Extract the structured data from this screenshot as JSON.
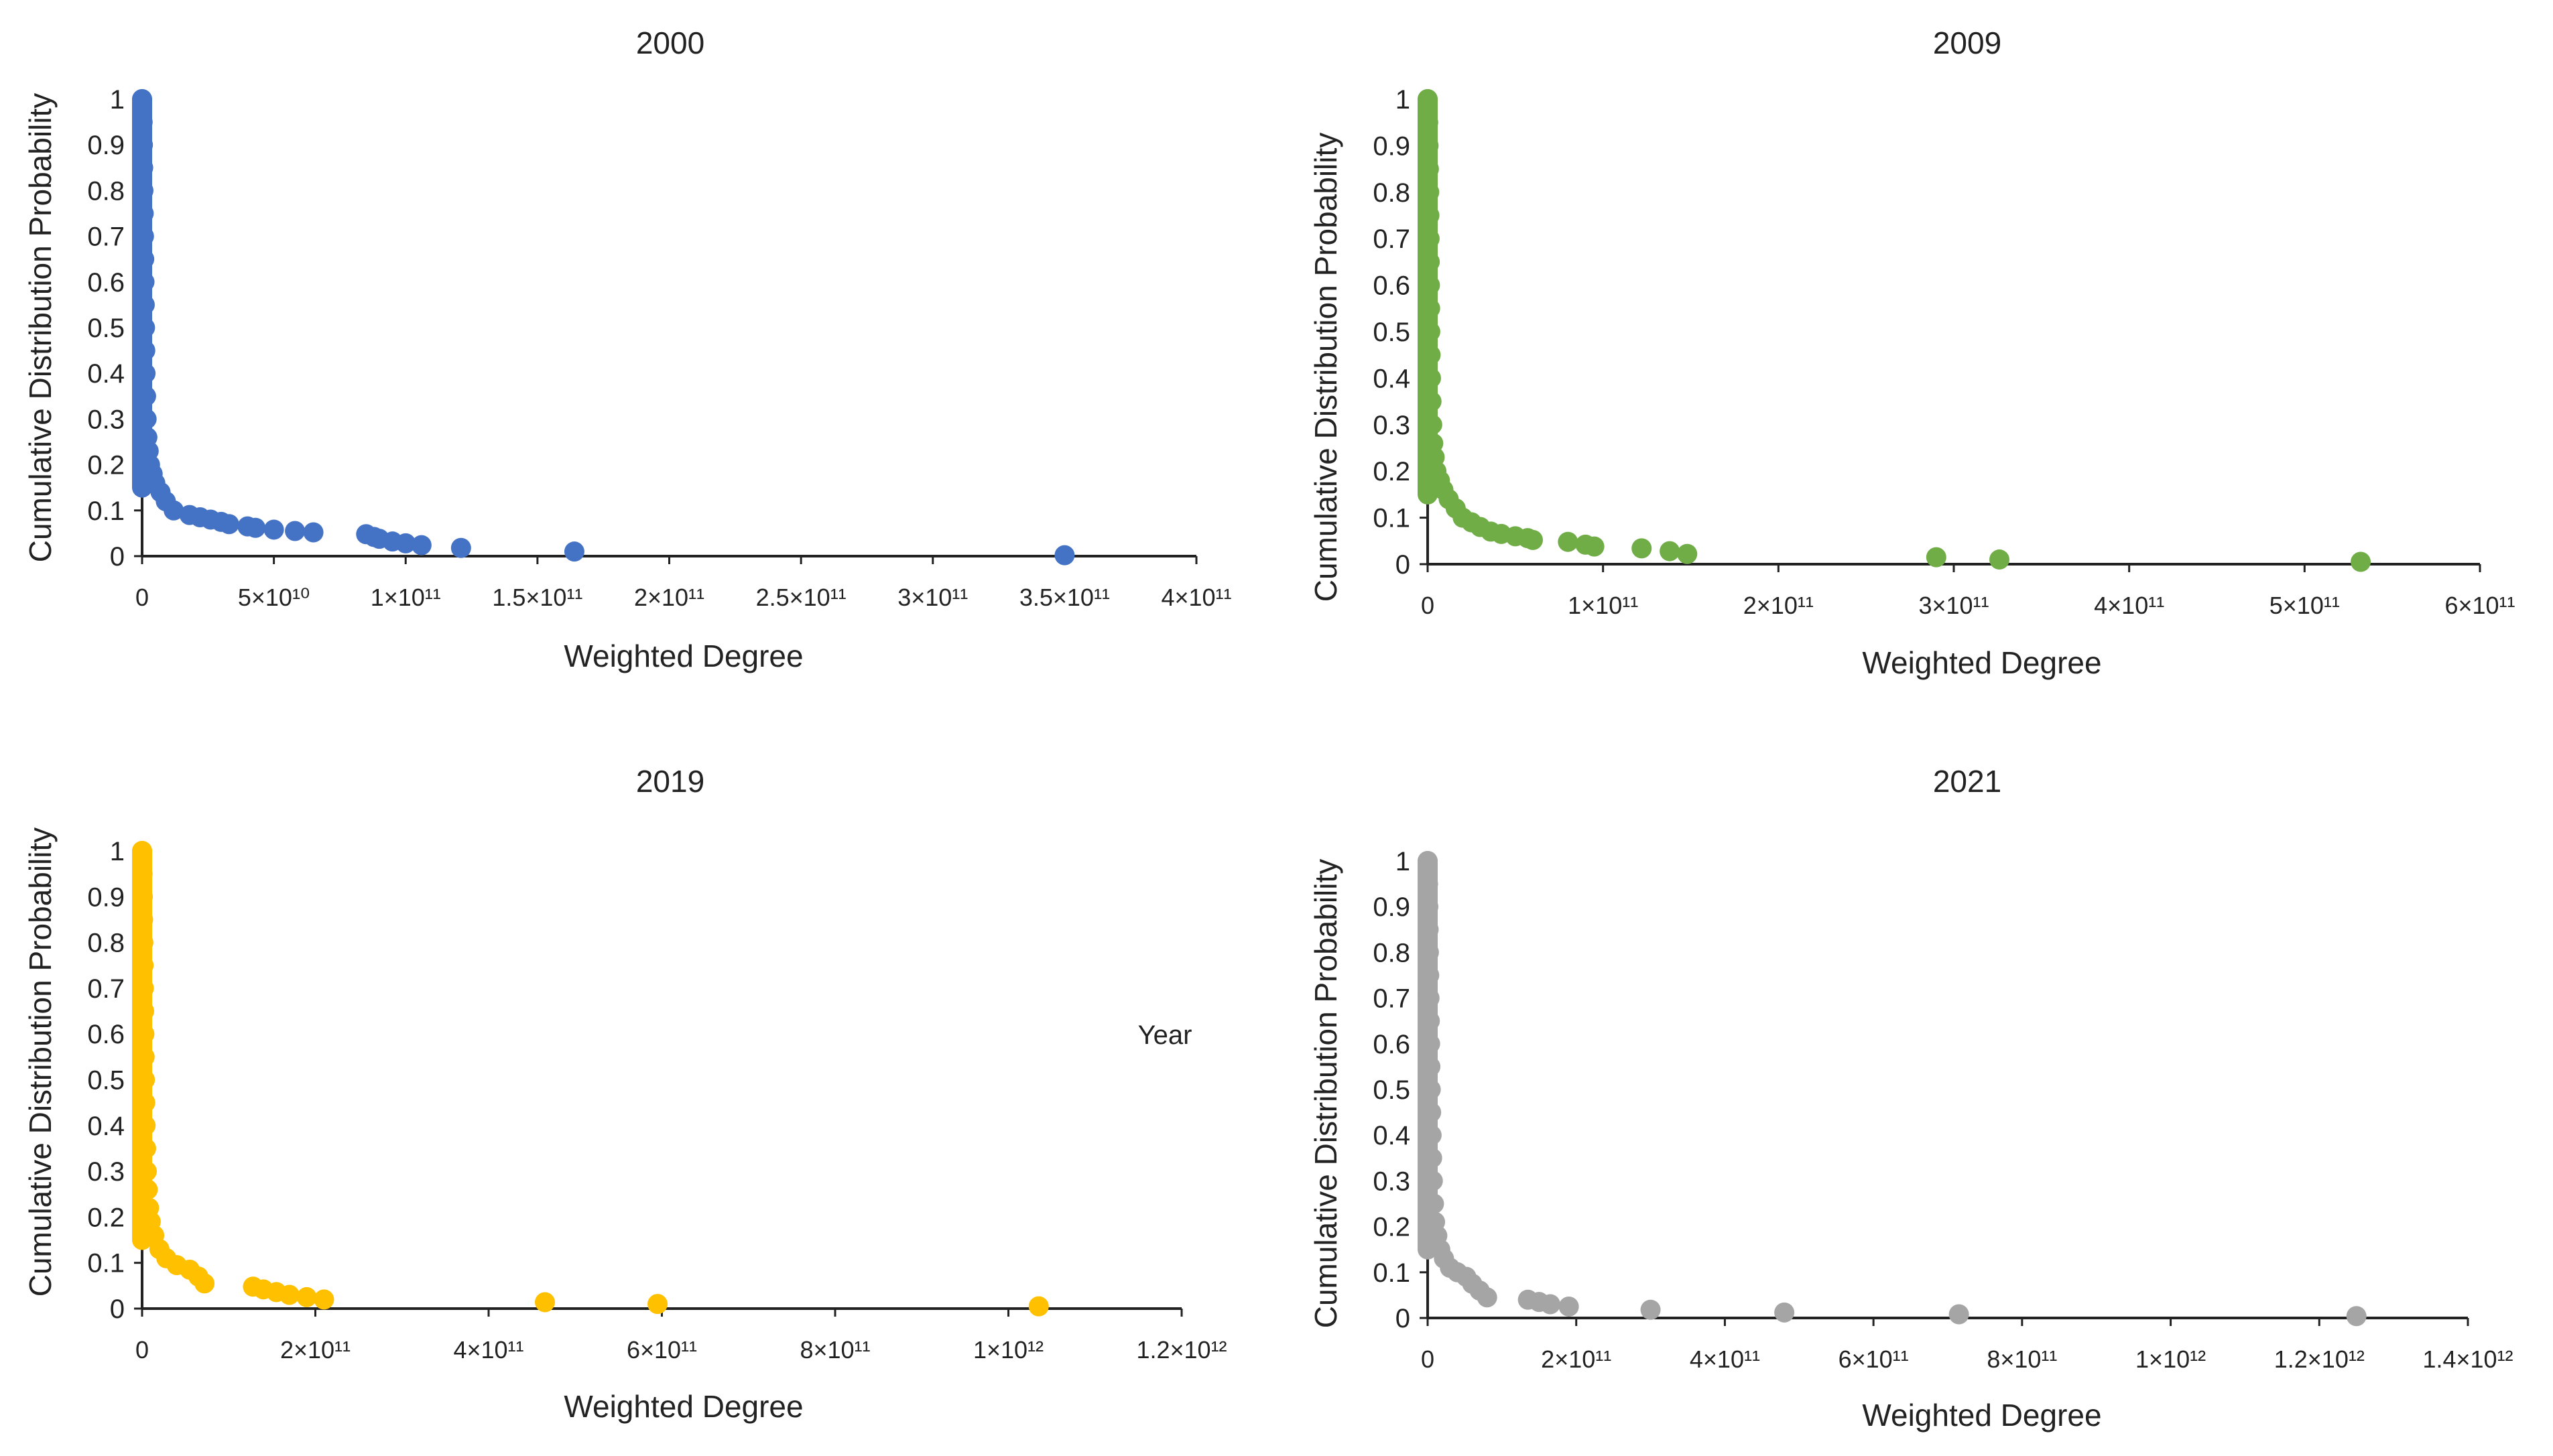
{
  "chart_data": [
    {
      "type": "scatter",
      "title": "2000",
      "xlabel": "Weighted Degree",
      "ylabel": "Cumulative Distribution Probability",
      "xlim": [
        0,
        400000000000
      ],
      "ylim": [
        0,
        1
      ],
      "color": "#4472c4",
      "x_ticks": [
        {
          "value": 0,
          "label": "0"
        },
        {
          "value": 50000000000,
          "label": "5×10¹⁰"
        },
        {
          "value": 100000000000,
          "label": "1×10¹¹"
        },
        {
          "value": 150000000000,
          "label": "1.5×10¹¹"
        },
        {
          "value": 200000000000,
          "label": "2×10¹¹"
        },
        {
          "value": 250000000000,
          "label": "2.5×10¹¹"
        },
        {
          "value": 300000000000,
          "label": "3×10¹¹"
        },
        {
          "value": 350000000000,
          "label": "3.5×10¹¹"
        },
        {
          "value": 400000000000,
          "label": "4×10¹¹"
        }
      ],
      "y_ticks": [
        {
          "value": 0,
          "label": "0"
        },
        {
          "value": 0.1,
          "label": "0.1"
        },
        {
          "value": 0.2,
          "label": "0.2"
        },
        {
          "value": 0.3,
          "label": "0.3"
        },
        {
          "value": 0.4,
          "label": "0.4"
        },
        {
          "value": 0.5,
          "label": "0.5"
        },
        {
          "value": 0.6,
          "label": "0.6"
        },
        {
          "value": 0.7,
          "label": "0.7"
        },
        {
          "value": 0.8,
          "label": "0.8"
        },
        {
          "value": 0.9,
          "label": "0.9"
        },
        {
          "value": 1,
          "label": "1"
        }
      ],
      "points": [
        [
          0,
          1.0
        ],
        [
          200000000,
          0.95
        ],
        [
          300000000,
          0.9
        ],
        [
          400000000,
          0.85
        ],
        [
          500000000,
          0.8
        ],
        [
          600000000,
          0.75
        ],
        [
          700000000,
          0.7
        ],
        [
          800000000,
          0.65
        ],
        [
          900000000,
          0.6
        ],
        [
          1000000000,
          0.55
        ],
        [
          1100000000,
          0.5
        ],
        [
          1200000000,
          0.45
        ],
        [
          1300000000,
          0.4
        ],
        [
          1500000000,
          0.35
        ],
        [
          1700000000,
          0.3
        ],
        [
          2000000000,
          0.26
        ],
        [
          2500000000,
          0.23
        ],
        [
          3000000000,
          0.2
        ],
        [
          4000000000,
          0.18
        ],
        [
          5000000000,
          0.16
        ],
        [
          7000000000,
          0.14
        ],
        [
          9000000000,
          0.12
        ],
        [
          12000000000,
          0.1
        ],
        [
          18000000000,
          0.09
        ],
        [
          22000000000,
          0.085
        ],
        [
          26000000000,
          0.08
        ],
        [
          30000000000,
          0.075
        ],
        [
          33000000000,
          0.07
        ],
        [
          40000000000,
          0.065
        ],
        [
          43000000000,
          0.062
        ],
        [
          50000000000,
          0.058
        ],
        [
          58000000000,
          0.055
        ],
        [
          65000000000,
          0.052
        ],
        [
          85000000000,
          0.048
        ],
        [
          88000000000,
          0.042
        ],
        [
          90000000000,
          0.038
        ],
        [
          95000000000,
          0.032
        ],
        [
          100000000000,
          0.028
        ],
        [
          106000000000,
          0.024
        ],
        [
          121000000000,
          0.018
        ],
        [
          164000000000,
          0.01
        ],
        [
          350000000000,
          0.002
        ]
      ]
    },
    {
      "type": "scatter",
      "title": "2009",
      "xlabel": "Weighted Degree",
      "ylabel": "Cumulative Distribution Probability",
      "xlim": [
        0,
        600000000000
      ],
      "ylim": [
        0,
        1
      ],
      "color": "#70ad47",
      "x_ticks": [
        {
          "value": 0,
          "label": "0"
        },
        {
          "value": 100000000000,
          "label": "1×10¹¹"
        },
        {
          "value": 200000000000,
          "label": "2×10¹¹"
        },
        {
          "value": 300000000000,
          "label": "3×10¹¹"
        },
        {
          "value": 400000000000,
          "label": "4×10¹¹"
        },
        {
          "value": 500000000000,
          "label": "5×10¹¹"
        },
        {
          "value": 600000000000,
          "label": "6×10¹¹"
        }
      ],
      "y_ticks": [
        {
          "value": 0,
          "label": "0"
        },
        {
          "value": 0.1,
          "label": "0.1"
        },
        {
          "value": 0.2,
          "label": "0.2"
        },
        {
          "value": 0.3,
          "label": "0.3"
        },
        {
          "value": 0.4,
          "label": "0.4"
        },
        {
          "value": 0.5,
          "label": "0.5"
        },
        {
          "value": 0.6,
          "label": "0.6"
        },
        {
          "value": 0.7,
          "label": "0.7"
        },
        {
          "value": 0.8,
          "label": "0.8"
        },
        {
          "value": 0.9,
          "label": "0.9"
        },
        {
          "value": 1,
          "label": "1"
        }
      ],
      "points": [
        [
          0,
          1.0
        ],
        [
          300000000,
          0.95
        ],
        [
          500000000,
          0.9
        ],
        [
          700000000,
          0.85
        ],
        [
          900000000,
          0.8
        ],
        [
          1000000000,
          0.75
        ],
        [
          1100000000,
          0.7
        ],
        [
          1200000000,
          0.65
        ],
        [
          1300000000,
          0.6
        ],
        [
          1400000000,
          0.55
        ],
        [
          1500000000,
          0.5
        ],
        [
          1700000000,
          0.45
        ],
        [
          1900000000,
          0.4
        ],
        [
          2200000000,
          0.35
        ],
        [
          2600000000,
          0.3
        ],
        [
          3200000000,
          0.26
        ],
        [
          4000000000,
          0.23
        ],
        [
          5000000000,
          0.2
        ],
        [
          7000000000,
          0.18
        ],
        [
          9000000000,
          0.16
        ],
        [
          12000000000,
          0.14
        ],
        [
          16000000000,
          0.12
        ],
        [
          20000000000,
          0.1
        ],
        [
          25000000000,
          0.09
        ],
        [
          30000000000,
          0.08
        ],
        [
          36000000000,
          0.07
        ],
        [
          42000000000,
          0.065
        ],
        [
          50000000000,
          0.06
        ],
        [
          57000000000,
          0.056
        ],
        [
          60000000000,
          0.052
        ],
        [
          80000000000,
          0.048
        ],
        [
          90000000000,
          0.042
        ],
        [
          95000000000,
          0.038
        ],
        [
          122000000000,
          0.034
        ],
        [
          138000000000,
          0.028
        ],
        [
          148000000000,
          0.022
        ],
        [
          290000000000,
          0.015
        ],
        [
          326000000000,
          0.01
        ],
        [
          532000000000,
          0.005
        ]
      ]
    },
    {
      "type": "scatter",
      "title": "2019",
      "xlabel": "Weighted Degree",
      "ylabel": "Cumulative Distribution Probability",
      "xlim": [
        0,
        1200000000000
      ],
      "ylim": [
        0,
        1
      ],
      "color": "#ffc000",
      "annotation": "Year",
      "x_ticks": [
        {
          "value": 0,
          "label": "0"
        },
        {
          "value": 200000000000,
          "label": "2×10¹¹"
        },
        {
          "value": 400000000000,
          "label": "4×10¹¹"
        },
        {
          "value": 600000000000,
          "label": "6×10¹¹"
        },
        {
          "value": 800000000000,
          "label": "8×10¹¹"
        },
        {
          "value": 1000000000000,
          "label": "1×10¹²"
        },
        {
          "value": 1200000000000,
          "label": "1.2×10¹²"
        }
      ],
      "y_ticks": [
        {
          "value": 0,
          "label": "0"
        },
        {
          "value": 0.1,
          "label": "0.1"
        },
        {
          "value": 0.2,
          "label": "0.2"
        },
        {
          "value": 0.3,
          "label": "0.3"
        },
        {
          "value": 0.4,
          "label": "0.4"
        },
        {
          "value": 0.5,
          "label": "0.5"
        },
        {
          "value": 0.6,
          "label": "0.6"
        },
        {
          "value": 0.7,
          "label": "0.7"
        },
        {
          "value": 0.8,
          "label": "0.8"
        },
        {
          "value": 0.9,
          "label": "0.9"
        },
        {
          "value": 1,
          "label": "1"
        }
      ],
      "points": [
        [
          0,
          1.0
        ],
        [
          500000000,
          0.95
        ],
        [
          800000000,
          0.9
        ],
        [
          1100000000,
          0.85
        ],
        [
          1400000000,
          0.8
        ],
        [
          1700000000,
          0.75
        ],
        [
          2000000000,
          0.7
        ],
        [
          2300000000,
          0.65
        ],
        [
          2600000000,
          0.6
        ],
        [
          2900000000,
          0.55
        ],
        [
          3200000000,
          0.5
        ],
        [
          3600000000,
          0.45
        ],
        [
          4000000000,
          0.4
        ],
        [
          4600000000,
          0.35
        ],
        [
          5400000000,
          0.3
        ],
        [
          6500000000,
          0.26
        ],
        [
          8000000000,
          0.22
        ],
        [
          10000000000,
          0.19
        ],
        [
          14000000000,
          0.16
        ],
        [
          20000000000,
          0.13
        ],
        [
          28000000000,
          0.11
        ],
        [
          40000000000,
          0.095
        ],
        [
          55000000000,
          0.085
        ],
        [
          65000000000,
          0.07
        ],
        [
          72000000000,
          0.055
        ],
        [
          128000000000,
          0.048
        ],
        [
          140000000000,
          0.042
        ],
        [
          155000000000,
          0.036
        ],
        [
          170000000000,
          0.03
        ],
        [
          190000000000,
          0.025
        ],
        [
          210000000000,
          0.02
        ],
        [
          465000000000,
          0.014
        ],
        [
          595000000000,
          0.01
        ],
        [
          1035000000000,
          0.005
        ]
      ]
    },
    {
      "type": "scatter",
      "title": "2021",
      "xlabel": "Weighted Degree",
      "ylabel": "Cumulative Distribution Probability",
      "xlim": [
        0,
        1400000000000
      ],
      "ylim": [
        0,
        1
      ],
      "color": "#a5a5a5",
      "x_ticks": [
        {
          "value": 0,
          "label": "0"
        },
        {
          "value": 200000000000,
          "label": "2×10¹¹"
        },
        {
          "value": 400000000000,
          "label": "4×10¹¹"
        },
        {
          "value": 600000000000,
          "label": "6×10¹¹"
        },
        {
          "value": 800000000000,
          "label": "8×10¹¹"
        },
        {
          "value": 1000000000000,
          "label": "1×10¹²"
        },
        {
          "value": 1200000000000,
          "label": "1.2×10¹²"
        },
        {
          "value": 1400000000000,
          "label": "1.4×10¹²"
        }
      ],
      "y_ticks": [
        {
          "value": 0,
          "label": "0"
        },
        {
          "value": 0.1,
          "label": "0.1"
        },
        {
          "value": 0.2,
          "label": "0.2"
        },
        {
          "value": 0.3,
          "label": "0.3"
        },
        {
          "value": 0.4,
          "label": "0.4"
        },
        {
          "value": 0.5,
          "label": "0.5"
        },
        {
          "value": 0.6,
          "label": "0.6"
        },
        {
          "value": 0.7,
          "label": "0.7"
        },
        {
          "value": 0.8,
          "label": "0.8"
        },
        {
          "value": 0.9,
          "label": "0.9"
        },
        {
          "value": 1,
          "label": "1"
        }
      ],
      "points": [
        [
          0,
          1.0
        ],
        [
          500000000,
          0.95
        ],
        [
          900000000,
          0.9
        ],
        [
          1300000000,
          0.85
        ],
        [
          1700000000,
          0.8
        ],
        [
          2100000000,
          0.75
        ],
        [
          2500000000,
          0.7
        ],
        [
          2900000000,
          0.65
        ],
        [
          3300000000,
          0.6
        ],
        [
          3700000000,
          0.55
        ],
        [
          4200000000,
          0.5
        ],
        [
          4700000000,
          0.45
        ],
        [
          5300000000,
          0.4
        ],
        [
          6000000000,
          0.35
        ],
        [
          7000000000,
          0.3
        ],
        [
          8500000000,
          0.25
        ],
        [
          10000000000,
          0.21
        ],
        [
          13000000000,
          0.18
        ],
        [
          17000000000,
          0.15
        ],
        [
          22000000000,
          0.13
        ],
        [
          30000000000,
          0.11
        ],
        [
          40000000000,
          0.1
        ],
        [
          52000000000,
          0.09
        ],
        [
          60000000000,
          0.075
        ],
        [
          70000000000,
          0.06
        ],
        [
          80000000000,
          0.045
        ],
        [
          135000000000,
          0.04
        ],
        [
          150000000000,
          0.035
        ],
        [
          165000000000,
          0.03
        ],
        [
          190000000000,
          0.025
        ],
        [
          300000000000,
          0.018
        ],
        [
          480000000000,
          0.012
        ],
        [
          715000000000,
          0.008
        ],
        [
          1250000000000,
          0.004
        ]
      ]
    }
  ]
}
